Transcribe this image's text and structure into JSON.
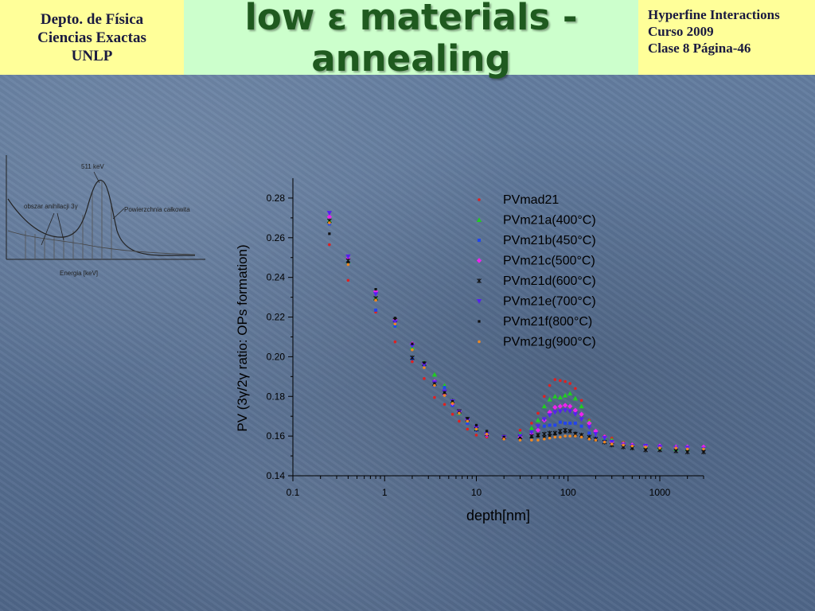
{
  "header": {
    "left_lines": [
      "Depto. de Física",
      "Ciencias Exactas",
      "UNLP"
    ],
    "title_lines": [
      "low ε materials -",
      "annealing"
    ],
    "right_lines": [
      "Hyperfine Interactions",
      "Curso 2009",
      "Clase 8  Página-46"
    ]
  },
  "inset": {
    "peak_label": "511 keV",
    "left_label": "obszar anihilacji 3γ",
    "right_label": "Powierzchnia całkowita",
    "xlabel": "Energia  [keV]"
  },
  "chart_data": {
    "type": "scatter",
    "xscale": "log",
    "xlim": [
      0.1,
      3000
    ],
    "ylim": [
      0.14,
      0.29
    ],
    "xticks": [
      "0.1",
      "1",
      "10",
      "100",
      "1000"
    ],
    "yticks": [
      "0.14",
      "0.16",
      "0.18",
      "0.20",
      "0.22",
      "0.24",
      "0.26",
      "0.28"
    ],
    "xlabel": "depth[nm]",
    "ylabel": "PV (3γ/2γ ratio: OPs formation)",
    "legend_position": "top-right",
    "series": [
      {
        "name": "PVmad21",
        "color": "#e02020",
        "marker": "circle",
        "x": [
          0.25,
          0.4,
          0.8,
          1.3,
          2,
          2.7,
          3.5,
          4.5,
          5.5,
          6.5,
          8,
          10,
          13,
          20,
          30,
          40,
          47,
          55,
          63,
          72,
          82,
          93,
          105,
          120,
          140,
          170,
          200,
          250,
          300,
          400,
          500,
          700,
          1000,
          1500,
          2000,
          3000
        ],
        "y": [
          0.2565,
          0.2385,
          0.2225,
          0.2075,
          0.1975,
          0.189,
          0.1795,
          0.176,
          0.171,
          0.1675,
          0.1635,
          0.1605,
          0.1595,
          0.16,
          0.163,
          0.1665,
          0.1715,
          0.18,
          0.1855,
          0.1885,
          0.188,
          0.1875,
          0.1865,
          0.184,
          0.178,
          0.168,
          0.162,
          0.16,
          0.159,
          0.157,
          0.1555,
          0.155,
          0.154,
          0.1535,
          0.153,
          0.153
        ]
      },
      {
        "name": "PVm21a(400°C)",
        "color": "#22cc22",
        "marker": "triangle",
        "x": [
          0.25,
          0.4,
          0.8,
          1.3,
          2,
          2.7,
          3.5,
          4.5,
          5.5,
          6.5,
          8,
          10,
          13,
          20,
          30,
          40,
          47,
          55,
          63,
          72,
          82,
          93,
          105,
          120,
          140,
          170,
          200,
          250,
          300,
          400,
          500,
          700,
          1000,
          1500,
          2000,
          3000
        ],
        "y": [
          0.2685,
          0.248,
          0.2295,
          0.216,
          0.2045,
          0.197,
          0.191,
          0.1855,
          0.1775,
          0.1715,
          0.168,
          0.164,
          0.161,
          0.1595,
          0.161,
          0.164,
          0.168,
          0.175,
          0.1785,
          0.18,
          0.1795,
          0.1805,
          0.1815,
          0.179,
          0.175,
          0.1675,
          0.162,
          0.159,
          0.158,
          0.1565,
          0.1555,
          0.155,
          0.154,
          0.1535,
          0.1535,
          0.1545
        ]
      },
      {
        "name": "PVm21b(450°C)",
        "color": "#2244ee",
        "marker": "square",
        "x": [
          0.25,
          0.4,
          0.8,
          1.3,
          2,
          2.7,
          3.5,
          4.5,
          5.5,
          6.5,
          8,
          10,
          13,
          20,
          30,
          40,
          47,
          55,
          63,
          72,
          82,
          93,
          105,
          120,
          140,
          170,
          200,
          250,
          300,
          400,
          500,
          700,
          1000,
          1500,
          2000,
          3000
        ],
        "y": [
          0.267,
          0.2475,
          0.2235,
          0.2155,
          0.199,
          0.196,
          0.1855,
          0.1845,
          0.1755,
          0.1715,
          0.1665,
          0.163,
          0.1605,
          0.1595,
          0.16,
          0.161,
          0.163,
          0.165,
          0.1655,
          0.1655,
          0.167,
          0.1665,
          0.1665,
          0.1665,
          0.165,
          0.1615,
          0.159,
          0.1575,
          0.157,
          0.1555,
          0.155,
          0.155,
          0.154,
          0.1535,
          0.1535,
          0.1535
        ]
      },
      {
        "name": "PVm21c(500°C)",
        "color": "#ee22ee",
        "marker": "diamond",
        "x": [
          0.25,
          0.4,
          0.8,
          1.3,
          2,
          2.7,
          3.5,
          4.5,
          5.5,
          6.5,
          8,
          10,
          13,
          20,
          30,
          40,
          47,
          55,
          63,
          72,
          82,
          93,
          105,
          120,
          140,
          170,
          200,
          250,
          300,
          400,
          500,
          700,
          1000,
          1500,
          2000,
          3000
        ],
        "y": [
          0.2705,
          0.2495,
          0.233,
          0.2185,
          0.2065,
          0.1965,
          0.1875,
          0.181,
          0.1765,
          0.1725,
          0.168,
          0.1645,
          0.1605,
          0.159,
          0.1595,
          0.161,
          0.163,
          0.168,
          0.172,
          0.1745,
          0.175,
          0.1755,
          0.175,
          0.173,
          0.171,
          0.1665,
          0.1625,
          0.1595,
          0.157,
          0.156,
          0.1555,
          0.155,
          0.155,
          0.1545,
          0.1545,
          0.1545
        ]
      },
      {
        "name": "PVm21d(600°C)",
        "color": "#111111",
        "marker": "star",
        "x": [
          0.25,
          0.4,
          0.8,
          1.3,
          2,
          2.7,
          3.5,
          4.5,
          5.5,
          6.5,
          8,
          10,
          13,
          20,
          30,
          40,
          47,
          55,
          63,
          72,
          82,
          93,
          105,
          120,
          140,
          170,
          200,
          250,
          300,
          400,
          500,
          700,
          1000,
          1500,
          2000,
          3000
        ],
        "y": [
          0.2685,
          0.2485,
          0.2295,
          0.2185,
          0.1995,
          0.1965,
          0.1865,
          0.182,
          0.1775,
          0.1725,
          0.1685,
          0.1635,
          0.161,
          0.1595,
          0.1595,
          0.16,
          0.1605,
          0.161,
          0.1615,
          0.1615,
          0.1625,
          0.163,
          0.1625,
          0.161,
          0.1605,
          0.1595,
          0.1585,
          0.157,
          0.1555,
          0.1545,
          0.154,
          0.153,
          0.153,
          0.1525,
          0.152,
          0.152
        ]
      },
      {
        "name": "PVm21e(700°C)",
        "color": "#5522ee",
        "marker": "tridown",
        "x": [
          0.25,
          0.4,
          0.8,
          1.3,
          2,
          2.7,
          3.5,
          4.5,
          5.5,
          6.5,
          8,
          10,
          13,
          20,
          30,
          40,
          47,
          55,
          63,
          72,
          82,
          93,
          105,
          120,
          140,
          170,
          200,
          250,
          300,
          400,
          500,
          700,
          1000,
          1500,
          2000,
          3000
        ],
        "y": [
          0.2725,
          0.2505,
          0.2315,
          0.2175,
          0.2055,
          0.196,
          0.187,
          0.1825,
          0.1775,
          0.172,
          0.168,
          0.1645,
          0.161,
          0.1595,
          0.16,
          0.162,
          0.165,
          0.1685,
          0.1705,
          0.172,
          0.1725,
          0.173,
          0.1725,
          0.171,
          0.1685,
          0.1645,
          0.161,
          0.159,
          0.157,
          0.1555,
          0.155,
          0.155,
          0.1545,
          0.154,
          0.154,
          0.1535
        ]
      },
      {
        "name": "PVm21f(800°C)",
        "color": "#111111",
        "marker": "smallsquare",
        "x": [
          0.25,
          0.4,
          0.8,
          1.3,
          2,
          2.7,
          3.5,
          4.5,
          5.5,
          6.5,
          8,
          10,
          13,
          20,
          30,
          40,
          47,
          55,
          63,
          72,
          82,
          93,
          105,
          120,
          140,
          170,
          200,
          250,
          300,
          400,
          500,
          700,
          1000,
          1500,
          2000,
          3000
        ],
        "y": [
          0.262,
          0.2475,
          0.234,
          0.2195,
          0.2065,
          0.197,
          0.1865,
          0.182,
          0.1775,
          0.172,
          0.169,
          0.1655,
          0.1625,
          0.1595,
          0.159,
          0.1595,
          0.16,
          0.1595,
          0.16,
          0.161,
          0.1615,
          0.162,
          0.1625,
          0.1615,
          0.16,
          0.159,
          0.1585,
          0.157,
          0.1555,
          0.155,
          0.154,
          0.1535,
          0.153,
          0.153,
          0.1525,
          0.1525
        ]
      },
      {
        "name": "PVm21g(900°C)",
        "color": "#ee8822",
        "marker": "circle",
        "x": [
          0.25,
          0.4,
          0.8,
          1.3,
          2,
          2.7,
          3.5,
          4.5,
          5.5,
          6.5,
          8,
          10,
          13,
          20,
          30,
          40,
          47,
          55,
          63,
          72,
          82,
          93,
          105,
          120,
          140,
          170,
          200,
          250,
          300,
          400,
          500,
          700,
          1000,
          1500,
          2000,
          3000
        ],
        "y": [
          0.2675,
          0.2465,
          0.2285,
          0.2165,
          0.2035,
          0.1945,
          0.1855,
          0.1805,
          0.1765,
          0.1715,
          0.1675,
          0.1635,
          0.161,
          0.1585,
          0.158,
          0.158,
          0.158,
          0.1585,
          0.159,
          0.1595,
          0.1595,
          0.16,
          0.16,
          0.16,
          0.1595,
          0.1585,
          0.158,
          0.157,
          0.156,
          0.1555,
          0.155,
          0.1545,
          0.154,
          0.154,
          0.1535,
          0.1535
        ]
      }
    ]
  }
}
